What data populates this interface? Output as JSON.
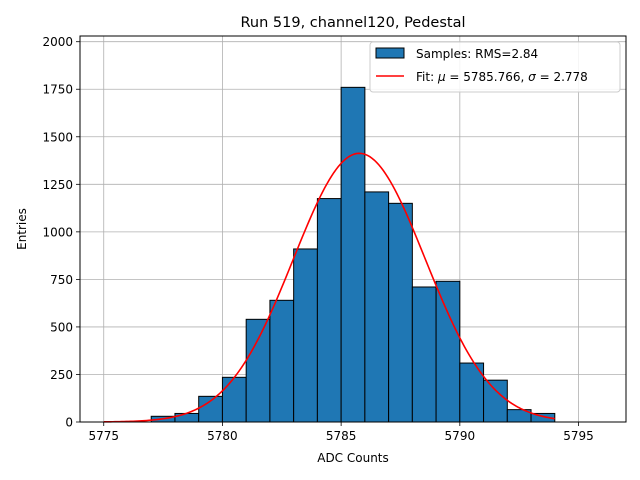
{
  "chart_data": {
    "type": "bar",
    "title": "Run 519, channel120, Pedestal",
    "xlabel": "ADC Counts",
    "ylabel": "Entries",
    "xlim": [
      5774.0,
      5797.0
    ],
    "ylim": [
      0,
      2030
    ],
    "xticks": [
      5775,
      5780,
      5785,
      5790,
      5795
    ],
    "yticks": [
      0,
      250,
      500,
      750,
      1000,
      1250,
      1500,
      1750,
      2000
    ],
    "grid": true,
    "legend_position": "top-right",
    "histogram": {
      "name": "Samples: RMS=2.84",
      "color": "#1f77b4",
      "bin_edges": [
        5777,
        5778,
        5779,
        5780,
        5781,
        5782,
        5783,
        5784,
        5785,
        5786,
        5787,
        5788,
        5789,
        5790,
        5791,
        5792,
        5793,
        5794
      ],
      "counts": [
        30,
        45,
        135,
        235,
        540,
        640,
        910,
        1175,
        1760,
        1210,
        1150,
        710,
        740,
        310,
        220,
        65,
        45
      ]
    },
    "fit": {
      "name_prefix": "Fit: ",
      "mu_symbol": "μ",
      "mu_text": " = 5785.766, ",
      "sigma_symbol": "σ",
      "sigma_text": " = 2.778",
      "mu": 5785.766,
      "sigma": 2.778,
      "amplitude": 1413,
      "x_range": [
        5775,
        5794
      ],
      "color": "#ff0000"
    }
  }
}
